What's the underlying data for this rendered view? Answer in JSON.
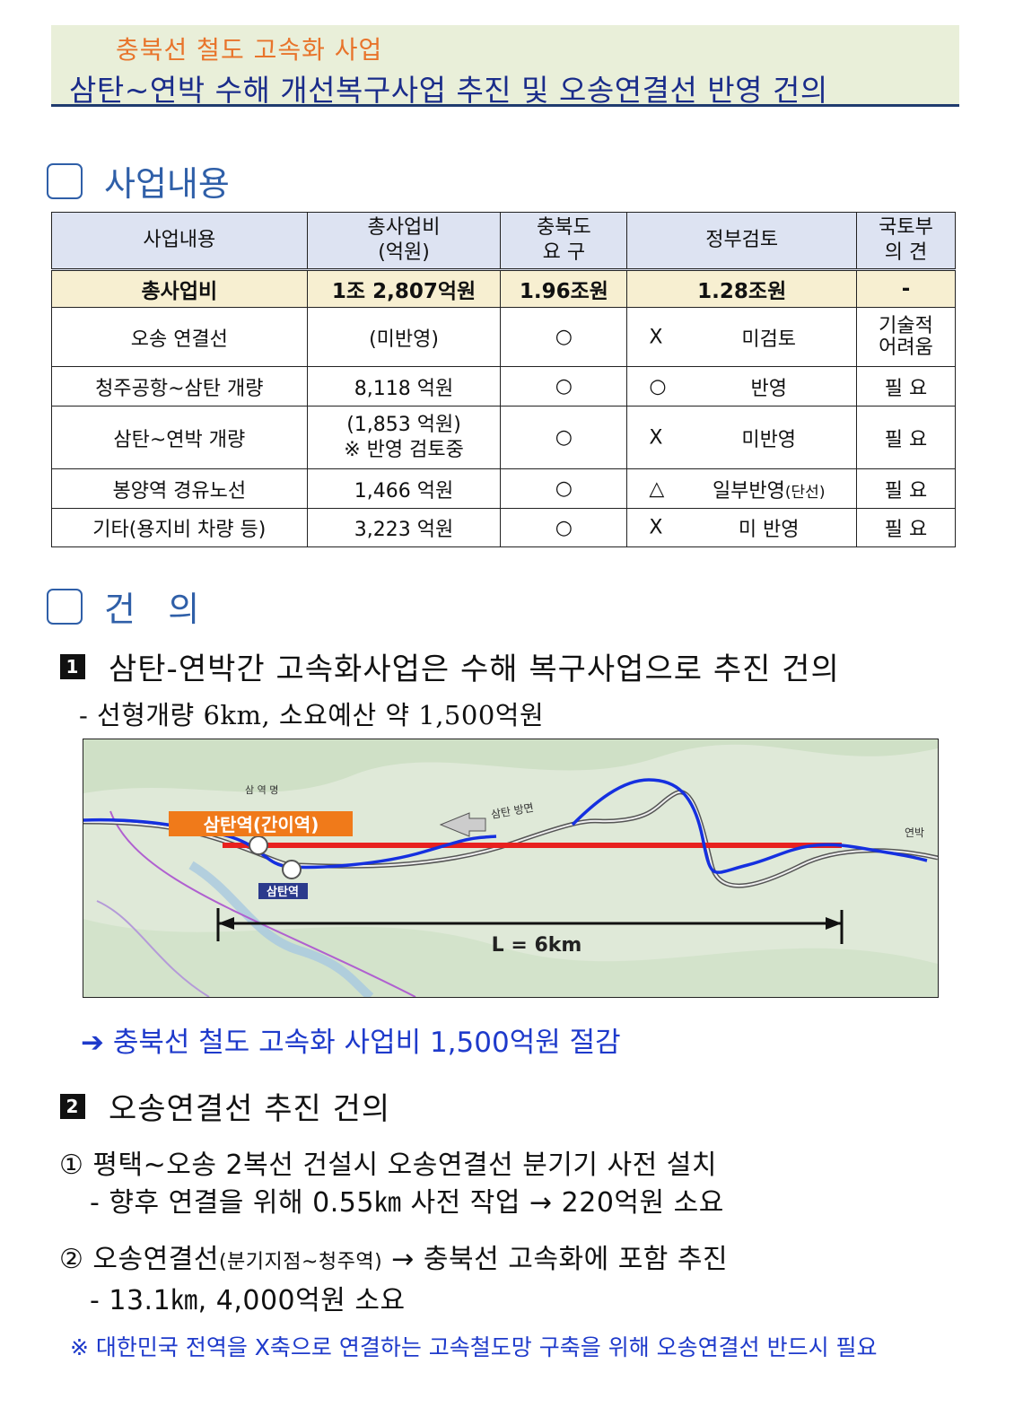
{
  "header": {
    "subtitle": "충북선 철도 고속화 사업",
    "title": "삼탄~연박 수해 개선복구사업 추진 및 오송연결선 반영 건의"
  },
  "section1": {
    "title": "사업내용"
  },
  "table": {
    "headers": [
      "사업내용",
      "총사업비\n(억원)",
      "충북도\n요  구",
      "정부검토",
      "국토부\n의  견"
    ],
    "total": {
      "name": "총사업비",
      "cost": "1조 2,807억원",
      "req": "1.96조원",
      "gov": "1.28조원",
      "opinion": "-"
    },
    "rows": [
      {
        "name": "오송 연결선",
        "cost": "(미반영)",
        "req": "○",
        "gov_mark": "X",
        "gov": "미검토",
        "opinion": "기술적\n어려움"
      },
      {
        "name": "청주공항~삼탄 개량",
        "cost": "8,118 억원",
        "req": "○",
        "gov_mark": "○",
        "gov": "반영",
        "opinion": "필 요"
      },
      {
        "name": "삼탄~연박 개량",
        "cost": "(1,853 억원)\n※ 반영 검토중",
        "req": "○",
        "gov_mark": "X",
        "gov": "미반영",
        "opinion": "필 요"
      },
      {
        "name": "봉양역 경유노선",
        "cost": "1,466 억원",
        "req": "○",
        "gov_mark": "△",
        "gov": "일부반영",
        "gov_small": "(단선)",
        "opinion": "필 요"
      },
      {
        "name": "기타(용지비 차량 등)",
        "cost": "3,223 억원",
        "req": "○",
        "gov_mark": "X",
        "gov": "미 반영",
        "opinion": "필 요"
      }
    ]
  },
  "section2": {
    "title": "건   의"
  },
  "item1": {
    "num": "1",
    "title": "삼탄-연박간 고속화사업은 수해 복구사업으로 추진 건의",
    "detail": "- 선형개량 6km, 소요예산 약 1,500억원"
  },
  "map": {
    "station1": "삼탄역(간이역)",
    "station2": "삼탄역",
    "label_top": "삼 역 명",
    "arrow_label": "삼탄 방면",
    "right_label": "연박",
    "distance": "L = 6km",
    "colors": {
      "route_red": "#e8211f",
      "route_blue": "#1530e0",
      "station_orange": "#f07a1a"
    }
  },
  "arrow_note": "➔ 충북선 철도 고속화 사업비 1,500억원 절감",
  "item2": {
    "num": "2",
    "title": "오송연결선 추진 건의",
    "p1": "① 평택~오송 2복선 건설시 오송연결선 분기기 사전 설치",
    "p1_detail": "- 향후 연결을 위해 0.55㎞ 사전 작업 → 220억원 소요",
    "p2_a": "② 오송연결선",
    "p2_small": "(분기지점~청주역)",
    "p2_b": " → 충북선 고속화에 포함 추진",
    "p2_detail": "- 13.1㎞, 4,000억원 소요"
  },
  "note": "※ 대한민국 전역을 X축으로 연결하는 고속철도망 구축을 위해 오송연결선 반드시 필요"
}
